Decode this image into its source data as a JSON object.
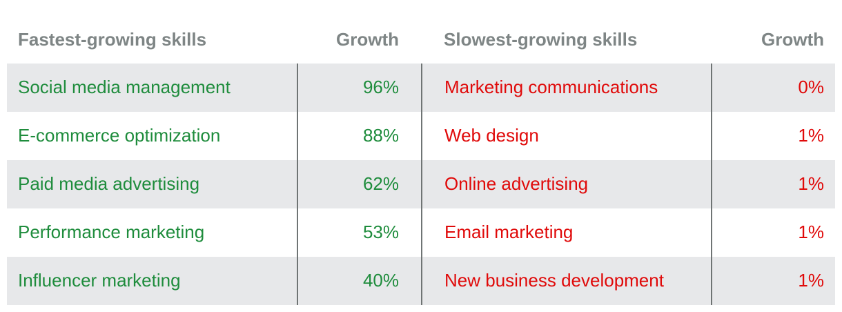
{
  "colors": {
    "header_text": "#7e8585",
    "fast_text": "#1e8c3c",
    "slow_text": "#e00a0a",
    "stripe": "#e7e8ea",
    "divider": "#6f7474"
  },
  "chart_data": {
    "type": "table",
    "columns": [
      "Fastest-growing skills",
      "Growth",
      "Slowest-growing skills",
      "Growth"
    ],
    "rows": [
      [
        "Social media management",
        "96%",
        "Marketing communications",
        "0%"
      ],
      [
        "E-commerce optimization",
        "88%",
        "Web design",
        "1%"
      ],
      [
        "Paid media advertising",
        "62%",
        "Online advertising",
        "1%"
      ],
      [
        "Performance marketing",
        "53%",
        "Email marketing",
        "1%"
      ],
      [
        "Influencer marketing",
        "40%",
        "New business development",
        "1%"
      ]
    ]
  }
}
